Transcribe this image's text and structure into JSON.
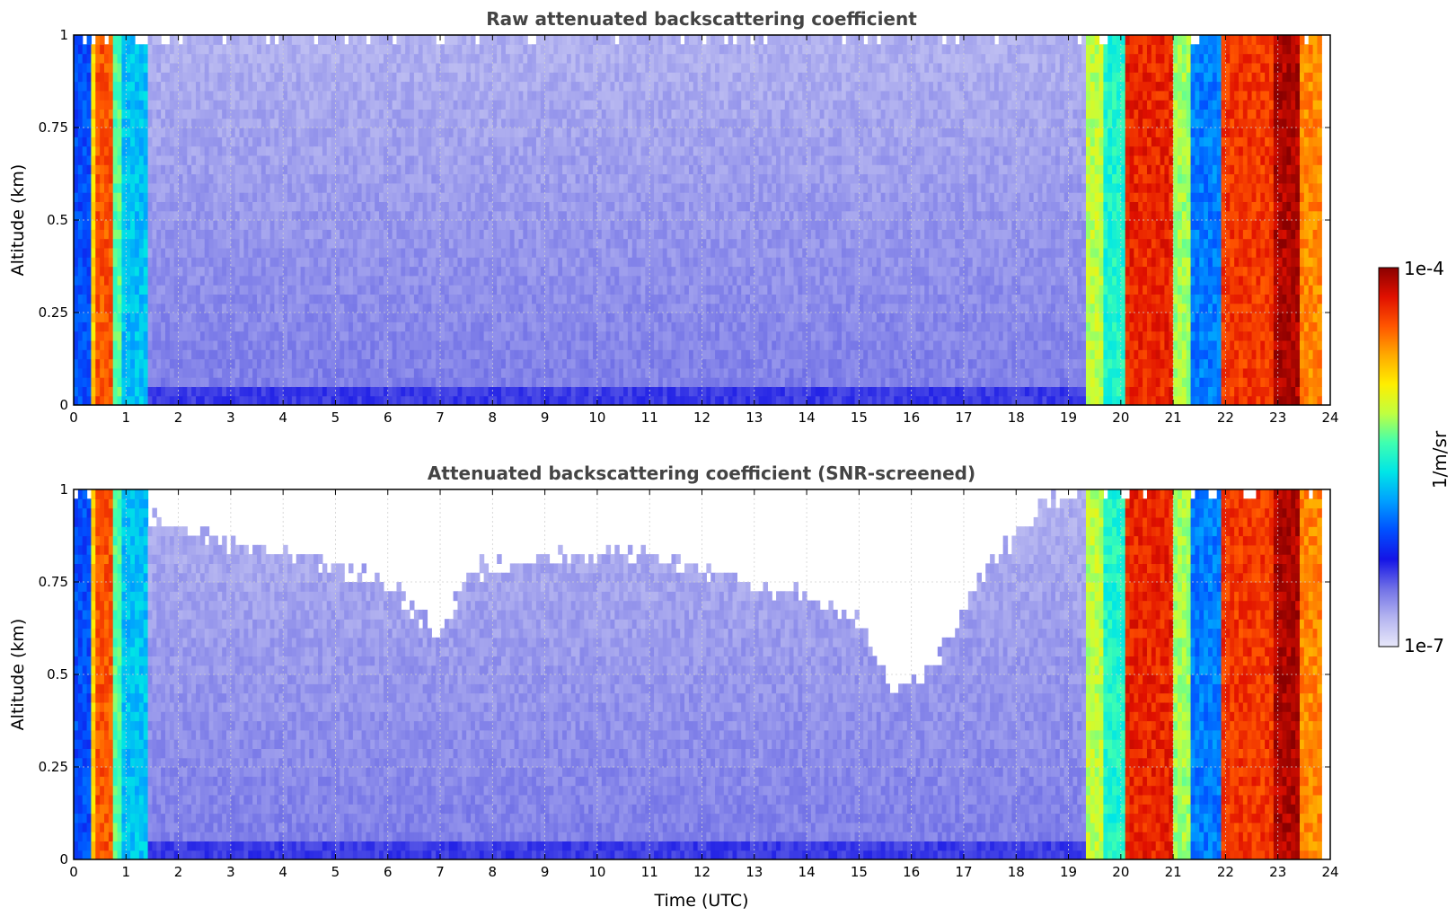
{
  "chart_data": [
    {
      "type": "heatmap",
      "title": "Raw attenuated backscattering coefficient",
      "xlabel": "",
      "ylabel": "Altitude (km)",
      "xlim": [
        0,
        24
      ],
      "ylim": [
        0,
        1
      ],
      "xticks": [
        "0",
        "1",
        "2",
        "3",
        "4",
        "5",
        "6",
        "7",
        "8",
        "9",
        "10",
        "11",
        "12",
        "13",
        "14",
        "15",
        "16",
        "17",
        "18",
        "19",
        "20",
        "21",
        "22",
        "23",
        "24"
      ],
      "yticks": [
        "0",
        "0.25",
        "0.5",
        "0.75",
        "1"
      ],
      "grid": true,
      "screened": false,
      "profiles": [
        {
          "t": [
            0.0,
            0.3
          ],
          "level": 0.3
        },
        {
          "t": [
            0.3,
            0.45
          ],
          "level": 0.72
        },
        {
          "t": [
            0.45,
            0.75
          ],
          "level": 0.85
        },
        {
          "t": [
            0.75,
            0.9
          ],
          "level": 0.55
        },
        {
          "t": [
            0.9,
            1.4
          ],
          "level": 0.42
        },
        {
          "t": [
            1.4,
            19.3
          ],
          "level": 0.14
        },
        {
          "t": [
            19.3,
            19.7
          ],
          "level": 0.62
        },
        {
          "t": [
            19.7,
            20.1
          ],
          "level": 0.5
        },
        {
          "t": [
            20.1,
            21.0
          ],
          "level": 0.9
        },
        {
          "t": [
            21.0,
            21.3
          ],
          "level": 0.6
        },
        {
          "t": [
            21.3,
            21.9
          ],
          "level": 0.35
        },
        {
          "t": [
            21.9,
            22.9
          ],
          "level": 0.88
        },
        {
          "t": [
            22.9,
            23.4
          ],
          "level": 0.97
        },
        {
          "t": [
            23.4,
            23.8
          ],
          "level": 0.8
        }
      ]
    },
    {
      "type": "heatmap",
      "title": "Attenuated backscattering coefficient (SNR-screened)",
      "xlabel": "Time (UTC)",
      "ylabel": "Altitude (km)",
      "xlim": [
        0,
        24
      ],
      "ylim": [
        0,
        1
      ],
      "xticks": [
        "0",
        "1",
        "2",
        "3",
        "4",
        "5",
        "6",
        "7",
        "8",
        "9",
        "10",
        "11",
        "12",
        "13",
        "14",
        "15",
        "16",
        "17",
        "18",
        "19",
        "20",
        "21",
        "22",
        "23",
        "24"
      ],
      "yticks": [
        "0",
        "0.25",
        "0.5",
        "0.75",
        "1"
      ],
      "grid": true,
      "screened": true,
      "screen_top": [
        {
          "t": 1.4,
          "alt": 0.92
        },
        {
          "t": 3.0,
          "alt": 0.85
        },
        {
          "t": 5.0,
          "alt": 0.8
        },
        {
          "t": 6.0,
          "alt": 0.75
        },
        {
          "t": 7.0,
          "alt": 0.6
        },
        {
          "t": 7.5,
          "alt": 0.78
        },
        {
          "t": 9.0,
          "alt": 0.82
        },
        {
          "t": 11.0,
          "alt": 0.83
        },
        {
          "t": 13.0,
          "alt": 0.75
        },
        {
          "t": 15.0,
          "alt": 0.65
        },
        {
          "t": 15.7,
          "alt": 0.45
        },
        {
          "t": 16.5,
          "alt": 0.55
        },
        {
          "t": 17.5,
          "alt": 0.8
        },
        {
          "t": 18.5,
          "alt": 0.95
        },
        {
          "t": 19.2,
          "alt": 1.0
        }
      ],
      "profiles": [
        {
          "t": [
            0.0,
            0.3
          ],
          "level": 0.3
        },
        {
          "t": [
            0.3,
            0.45
          ],
          "level": 0.72
        },
        {
          "t": [
            0.45,
            0.75
          ],
          "level": 0.85
        },
        {
          "t": [
            0.75,
            0.9
          ],
          "level": 0.55
        },
        {
          "t": [
            0.9,
            1.4
          ],
          "level": 0.42
        },
        {
          "t": [
            1.4,
            19.3
          ],
          "level": 0.14
        },
        {
          "t": [
            19.3,
            19.7
          ],
          "level": 0.62
        },
        {
          "t": [
            19.7,
            20.1
          ],
          "level": 0.5
        },
        {
          "t": [
            20.1,
            21.0
          ],
          "level": 0.9
        },
        {
          "t": [
            21.0,
            21.3
          ],
          "level": 0.6
        },
        {
          "t": [
            21.3,
            21.9
          ],
          "level": 0.35
        },
        {
          "t": [
            21.9,
            22.9
          ],
          "level": 0.88
        },
        {
          "t": [
            22.9,
            23.4
          ],
          "level": 0.97
        },
        {
          "t": [
            23.4,
            23.8
          ],
          "level": 0.8
        }
      ]
    }
  ],
  "colorbar": {
    "label": "1/m/sr",
    "max_label": "1e-4",
    "min_label": "1e-7",
    "colors": [
      "#e8e8fa",
      "#b4b4f0",
      "#7070e6",
      "#1414e6",
      "#0050ff",
      "#00a0ff",
      "#00e6e6",
      "#40ffb0",
      "#c0ff40",
      "#ffee00",
      "#ffaa00",
      "#ff5500",
      "#e01000",
      "#8b0000"
    ]
  }
}
